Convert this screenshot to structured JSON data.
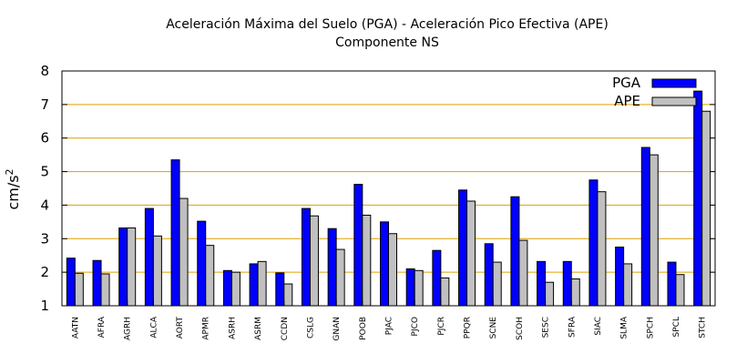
{
  "chart_data": {
    "type": "bar",
    "title": "Aceleración Máxima del Suelo (PGA) -  Aceleración Pico Efectiva (APE)",
    "subtitle": "Componente NS",
    "xlabel": "",
    "ylabel": "cm/s",
    "ylabel_superscript": "2",
    "ylim": [
      1,
      8
    ],
    "yticks": [
      1,
      2,
      3,
      4,
      5,
      6,
      7,
      8
    ],
    "grid": "horizontal",
    "legend_position": "top-right",
    "categories": [
      "AATN",
      "AFRA",
      "AGRH",
      "ALCA",
      "AORT",
      "APMR",
      "ASRH",
      "ASRM",
      "CCDN",
      "CSLG",
      "GNAN",
      "POOB",
      "PJAC",
      "PJCO",
      "PJCR",
      "PPQR",
      "SCNE",
      "SCOH",
      "SESC",
      "SFRA",
      "SIAC",
      "SLMA",
      "SPCH",
      "SPCL",
      "STCH"
    ],
    "series": [
      {
        "name": "PGA",
        "color": "#0000ff",
        "values": [
          2.42,
          2.35,
          3.32,
          3.9,
          5.35,
          3.52,
          2.05,
          2.25,
          1.98,
          3.9,
          3.3,
          4.62,
          3.5,
          2.1,
          2.65,
          4.45,
          2.85,
          4.25,
          2.32,
          2.32,
          4.75,
          2.75,
          5.72,
          2.3,
          7.4
        ]
      },
      {
        "name": "APE",
        "color": "#c0c0c0",
        "values": [
          1.97,
          1.95,
          3.32,
          3.08,
          4.2,
          2.8,
          2.0,
          2.32,
          1.65,
          3.68,
          2.68,
          3.7,
          3.15,
          2.05,
          1.83,
          4.12,
          2.3,
          2.95,
          1.7,
          1.8,
          4.4,
          2.25,
          5.5,
          1.93,
          6.8
        ]
      }
    ],
    "colors": {
      "grid": "#e0a000",
      "axis": "#000000",
      "bar_outline": "#000000"
    }
  }
}
